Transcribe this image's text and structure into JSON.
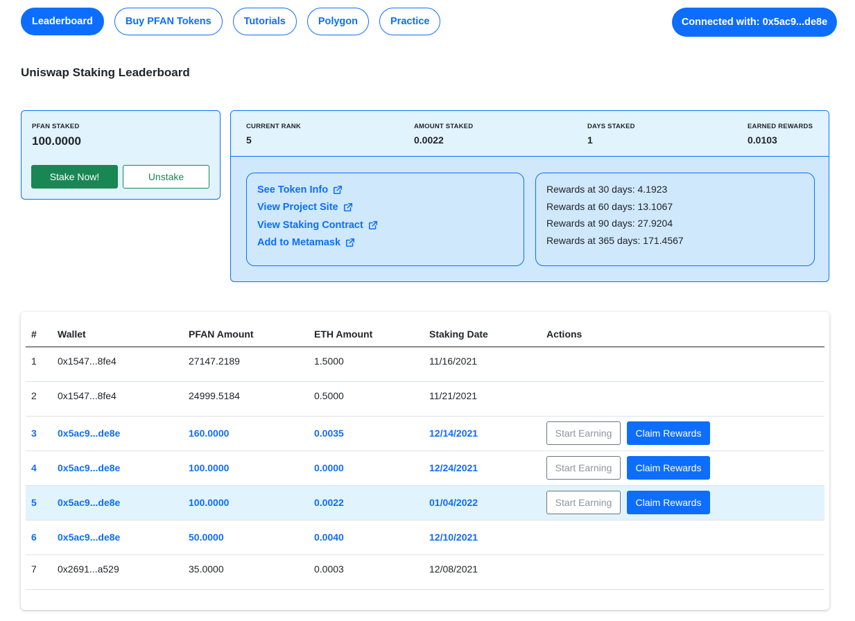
{
  "nav": {
    "items": [
      {
        "label": "Leaderboard",
        "active": true
      },
      {
        "label": "Buy PFAN Tokens",
        "active": false
      },
      {
        "label": "Tutorials",
        "active": false
      },
      {
        "label": "Polygon",
        "active": false
      },
      {
        "label": "Practice",
        "active": false
      }
    ],
    "connected_label": "Connected with: 0x5ac9...de8e"
  },
  "page_title": "Uniswap Staking Leaderboard",
  "stake_card": {
    "label": "PFAN STAKED",
    "value": "100.0000",
    "stake_button": "Stake Now!",
    "unstake_button": "Unstake"
  },
  "stats": {
    "current_rank": {
      "label": "CURRENT RANK",
      "value": "5"
    },
    "amount_staked": {
      "label": "AMOUNT STAKED",
      "value": "0.0022"
    },
    "days_staked": {
      "label": "DAYS STAKED",
      "value": "1"
    },
    "earned_rewards": {
      "label": "EARNED REWARDS",
      "value": "0.0103"
    }
  },
  "links": [
    "See Token Info",
    "View Project Site",
    "View Staking Contract",
    "Add to Metamask"
  ],
  "rewards": [
    "Rewards at 30 days: 4.1923",
    "Rewards at 60 days: 13.1067",
    "Rewards at 90 days: 27.9204",
    "Rewards at 365 days: 171.4567"
  ],
  "table": {
    "headers": [
      "#",
      "Wallet",
      "PFAN Amount",
      "ETH Amount",
      "Staking Date",
      "Actions"
    ],
    "rows": [
      {
        "rank": "1",
        "wallet": "0x1547...8fe4",
        "pfan": "27147.2189",
        "eth": "1.5000",
        "date": "11/16/2021"
      },
      {
        "rank": "2",
        "wallet": "0x1547...8fe4",
        "pfan": "24999.5184",
        "eth": "0.5000",
        "date": "11/21/2021"
      },
      {
        "rank": "3",
        "wallet": "0x5ac9...de8e",
        "pfan": "160.0000",
        "eth": "0.0035",
        "date": "12/14/2021"
      },
      {
        "rank": "4",
        "wallet": "0x5ac9...de8e",
        "pfan": "100.0000",
        "eth": "0.0000",
        "date": "12/24/2021"
      },
      {
        "rank": "5",
        "wallet": "0x5ac9...de8e",
        "pfan": "100.0000",
        "eth": "0.0022",
        "date": "01/04/2022"
      },
      {
        "rank": "6",
        "wallet": "0x5ac9...de8e",
        "pfan": "50.0000",
        "eth": "0.0040",
        "date": "12/10/2021"
      },
      {
        "rank": "7",
        "wallet": "0x2691...a529",
        "pfan": "35.0000",
        "eth": "0.0003",
        "date": "12/08/2021"
      }
    ],
    "start_earning_label": "Start Earning",
    "claim_rewards_label": "Claim Rewards"
  },
  "colors": {
    "primary": "#0d6efd",
    "success": "#198754",
    "card_bg": "#e1f3fd",
    "inner_bg": "#cfe8fc"
  },
  "icons": {
    "link_icon": "external-link-icon"
  }
}
